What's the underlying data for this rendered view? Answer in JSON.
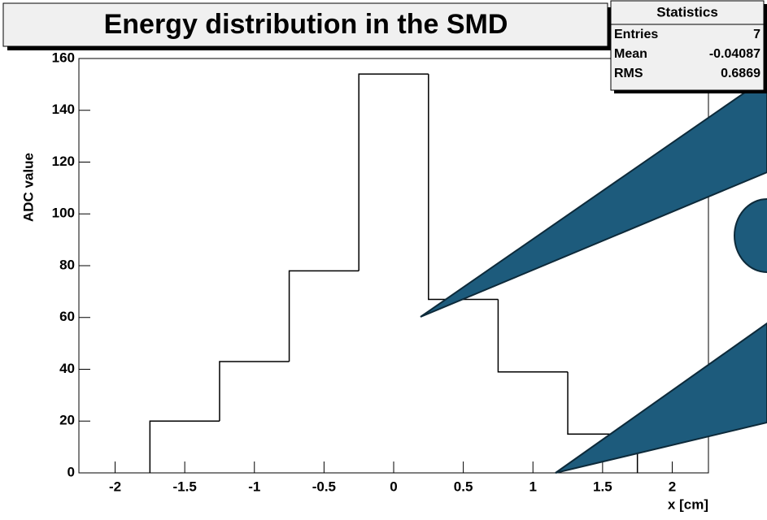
{
  "chart_data": {
    "type": "histogram",
    "title": "Energy distribution in the SMD",
    "x_label": "x [cm]",
    "y_label": "ADC value",
    "bins": [
      -1.75,
      -1.25,
      -0.75,
      -0.25,
      0.25,
      0.75,
      1.25,
      1.75
    ],
    "values": [
      20,
      43,
      78,
      154,
      67,
      39,
      15
    ],
    "color": "#000000",
    "xlim": [
      -2.26,
      2.26
    ],
    "xticks": [
      -2,
      -1.5,
      -1,
      -0.5,
      0,
      0.5,
      1,
      1.5,
      2
    ],
    "ylim": [
      0,
      160
    ],
    "yticks": [
      0,
      20,
      40,
      60,
      80,
      100,
      120,
      140,
      160
    ],
    "stats": {
      "title": "Statistics",
      "rows": [
        [
          "Entries",
          7
        ],
        [
          "Mean",
          -0.04087
        ],
        [
          "RMS",
          0.6869
        ]
      ]
    }
  }
}
